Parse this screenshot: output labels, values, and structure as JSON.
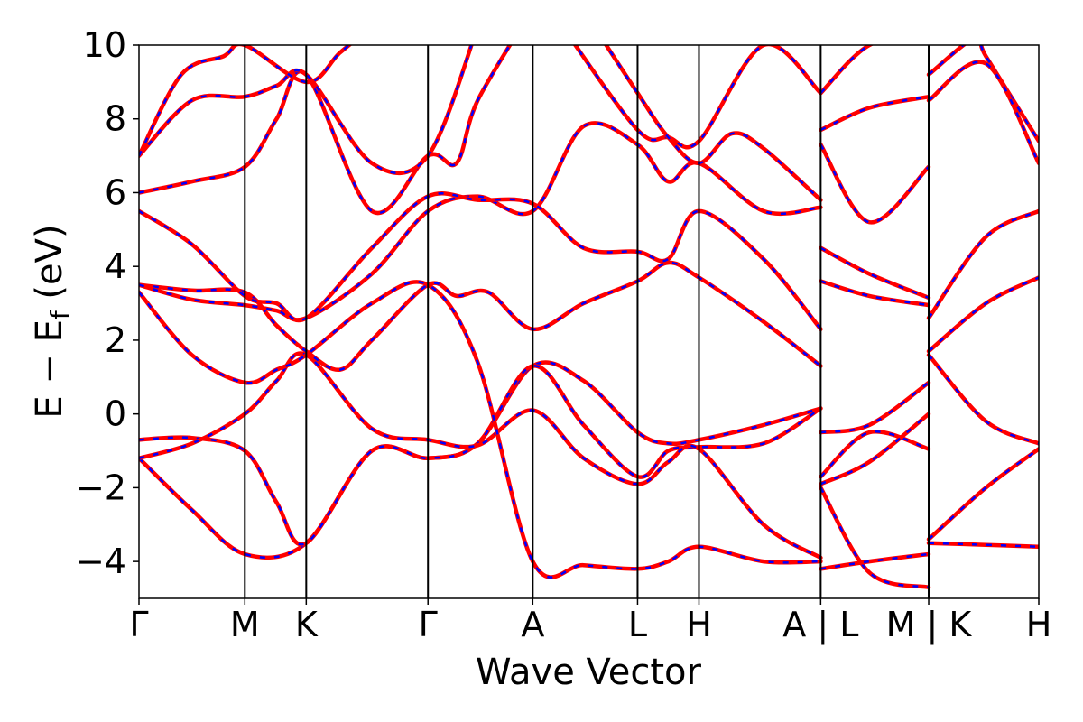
{
  "chart_data": {
    "type": "line",
    "title": "",
    "xlabel": "Wave Vector",
    "ylabel_main": "E − E",
    "ylabel_sub": "f",
    "ylabel_unit": " (eV)",
    "ylim": [
      -5,
      10
    ],
    "yticks": [
      -4,
      -2,
      0,
      2,
      4,
      6,
      8,
      10
    ],
    "ytick_labels": [
      "−4",
      "−2",
      "0",
      "2",
      "4",
      "6",
      "8",
      "10"
    ],
    "xlim": [
      0,
      8.5
    ],
    "kpoints": [
      {
        "label": "Γ",
        "x": 0.0
      },
      {
        "label": "M",
        "x": 1.0
      },
      {
        "label": "K",
        "x": 1.58
      },
      {
        "label": "Γ",
        "x": 2.73
      },
      {
        "label": "A",
        "x": 3.72
      },
      {
        "label": "L",
        "x": 4.71
      },
      {
        "label": "H",
        "x": 5.29
      },
      {
        "label": "A | L",
        "x": 6.44
      },
      {
        "label": "M | K",
        "x": 7.46
      },
      {
        "label": "H",
        "x": 8.5
      }
    ],
    "grid": false,
    "legend": "none",
    "colors": {
      "primary": "#ff0000",
      "secondary": "#0000ff",
      "axis": "#000000"
    },
    "series": [
      {
        "points": [
          [
            0,
            -1.2
          ],
          [
            0.5,
            -2.6
          ],
          [
            1.0,
            -3.8
          ],
          [
            1.58,
            -3.5
          ],
          [
            2.2,
            -1.0
          ],
          [
            2.73,
            -1.2
          ],
          [
            3.2,
            -0.8
          ],
          [
            3.72,
            1.3
          ],
          [
            4.2,
            0.9
          ],
          [
            4.71,
            -0.5
          ],
          [
            5.0,
            -0.8
          ],
          [
            5.29,
            -0.7
          ],
          [
            5.9,
            -0.3
          ],
          [
            6.44,
            0.15
          ]
        ]
      },
      {
        "points": [
          [
            0,
            -0.7
          ],
          [
            0.5,
            -0.65
          ],
          [
            1.0,
            -1.0
          ],
          [
            1.3,
            -2.4
          ],
          [
            1.58,
            -3.5
          ],
          [
            2.2,
            -1.0
          ],
          [
            2.73,
            -1.2
          ],
          [
            3.2,
            -0.8
          ],
          [
            3.72,
            1.3
          ],
          [
            4.2,
            -0.3
          ],
          [
            4.71,
            -1.7
          ],
          [
            5.0,
            -1.0
          ],
          [
            5.29,
            -0.9
          ],
          [
            5.9,
            -0.8
          ],
          [
            6.44,
            0.15
          ]
        ]
      },
      {
        "points": [
          [
            0,
            -1.2
          ],
          [
            0.5,
            -0.8
          ],
          [
            1.0,
            0.0
          ],
          [
            1.3,
            0.9
          ],
          [
            1.58,
            1.6
          ],
          [
            2.2,
            -0.4
          ],
          [
            2.73,
            -0.7
          ],
          [
            3.2,
            -0.85
          ],
          [
            3.72,
            0.1
          ],
          [
            4.2,
            -1.2
          ],
          [
            4.71,
            -1.9
          ],
          [
            5.0,
            -1.3
          ],
          [
            5.29,
            -0.95
          ],
          [
            5.9,
            -3.0
          ],
          [
            6.44,
            -3.9
          ]
        ]
      },
      {
        "points": [
          [
            0,
            3.3
          ],
          [
            0.5,
            1.6
          ],
          [
            1.0,
            0.85
          ],
          [
            1.3,
            1.2
          ],
          [
            1.58,
            1.6
          ],
          [
            2.2,
            3.0
          ],
          [
            2.73,
            3.5
          ],
          [
            3.2,
            1.4
          ],
          [
            3.72,
            -4.0
          ],
          [
            4.2,
            -4.1
          ],
          [
            4.71,
            -4.2
          ],
          [
            5.0,
            -4.0
          ],
          [
            5.29,
            -3.6
          ],
          [
            5.9,
            -4.0
          ],
          [
            6.44,
            -4.0
          ]
        ]
      },
      {
        "points": [
          [
            0,
            3.5
          ],
          [
            0.5,
            3.35
          ],
          [
            1.0,
            3.3
          ],
          [
            1.3,
            2.4
          ],
          [
            1.58,
            1.7
          ],
          [
            1.9,
            1.2
          ],
          [
            2.2,
            2.0
          ],
          [
            2.73,
            3.5
          ],
          [
            3.0,
            3.2
          ],
          [
            3.3,
            3.3
          ],
          [
            3.72,
            2.3
          ],
          [
            4.2,
            3.0
          ],
          [
            4.71,
            3.6
          ],
          [
            5.0,
            4.1
          ],
          [
            5.29,
            3.7
          ],
          [
            5.9,
            2.5
          ],
          [
            6.44,
            1.3
          ]
        ]
      },
      {
        "points": [
          [
            0,
            3.5
          ],
          [
            0.5,
            3.1
          ],
          [
            1.0,
            2.95
          ],
          [
            1.3,
            2.8
          ],
          [
            1.58,
            2.6
          ],
          [
            2.2,
            3.8
          ],
          [
            2.73,
            5.5
          ],
          [
            3.2,
            5.9
          ],
          [
            3.72,
            5.5
          ],
          [
            4.2,
            7.8
          ],
          [
            4.71,
            7.3
          ],
          [
            5.0,
            6.3
          ],
          [
            5.29,
            6.8
          ],
          [
            5.9,
            5.5
          ],
          [
            6.44,
            5.6
          ]
        ]
      },
      {
        "points": [
          [
            0,
            5.5
          ],
          [
            0.5,
            4.6
          ],
          [
            1.0,
            3.2
          ],
          [
            1.3,
            3.0
          ],
          [
            1.58,
            2.6
          ],
          [
            2.2,
            4.5
          ],
          [
            2.73,
            5.9
          ],
          [
            3.2,
            5.8
          ],
          [
            3.72,
            5.7
          ],
          [
            4.2,
            4.5
          ],
          [
            4.71,
            4.4
          ],
          [
            5.0,
            4.2
          ],
          [
            5.29,
            5.5
          ],
          [
            5.9,
            4.2
          ],
          [
            6.44,
            2.3
          ]
        ]
      },
      {
        "points": [
          [
            0,
            6.0
          ],
          [
            0.5,
            6.3
          ],
          [
            1.0,
            6.7
          ],
          [
            1.3,
            8.0
          ],
          [
            1.58,
            9.2
          ],
          [
            2.2,
            5.5
          ],
          [
            2.73,
            7.0
          ],
          [
            3.0,
            6.8
          ],
          [
            3.2,
            8.5
          ],
          [
            3.72,
            11.0
          ]
        ]
      },
      {
        "points": [
          [
            0,
            7.0
          ],
          [
            0.5,
            8.5
          ],
          [
            1.0,
            8.6
          ],
          [
            1.3,
            8.9
          ],
          [
            1.58,
            9.2
          ],
          [
            2.2,
            6.8
          ],
          [
            2.73,
            7.0
          ],
          [
            3.2,
            10.5
          ]
        ]
      },
      {
        "points": [
          [
            0,
            7.0
          ],
          [
            0.4,
            9.2
          ],
          [
            0.8,
            9.7
          ],
          [
            1.0,
            10.0
          ],
          [
            1.58,
            9.0
          ],
          [
            1.9,
            9.8
          ],
          [
            2.2,
            10.5
          ]
        ]
      },
      {
        "points": [
          [
            4.0,
            10.5
          ],
          [
            4.71,
            7.7
          ],
          [
            5.0,
            7.5
          ],
          [
            5.29,
            7.4
          ],
          [
            5.9,
            10.0
          ],
          [
            6.44,
            8.7
          ]
        ]
      },
      {
        "points": [
          [
            4.3,
            10.5
          ],
          [
            4.71,
            8.7
          ],
          [
            5.0,
            7.5
          ],
          [
            5.29,
            6.8
          ],
          [
            5.6,
            7.6
          ],
          [
            5.9,
            7.2
          ],
          [
            6.44,
            5.8
          ]
        ]
      },
      {
        "points": [
          [
            6.44,
            8.7
          ],
          [
            6.9,
            10.0
          ],
          [
            7.46,
            10.3
          ]
        ]
      },
      {
        "points": [
          [
            6.44,
            7.7
          ],
          [
            6.9,
            8.3
          ],
          [
            7.46,
            8.6
          ]
        ]
      },
      {
        "points": [
          [
            6.44,
            7.3
          ],
          [
            6.9,
            5.2
          ],
          [
            7.46,
            6.7
          ]
        ]
      },
      {
        "points": [
          [
            6.44,
            4.5
          ],
          [
            6.9,
            3.8
          ],
          [
            7.46,
            3.15
          ]
        ]
      },
      {
        "points": [
          [
            6.44,
            3.6
          ],
          [
            6.9,
            3.2
          ],
          [
            7.46,
            2.95
          ]
        ]
      },
      {
        "points": [
          [
            6.44,
            -0.5
          ],
          [
            6.9,
            -0.3
          ],
          [
            7.46,
            0.85
          ]
        ]
      },
      {
        "points": [
          [
            6.44,
            -1.7
          ],
          [
            6.9,
            -0.5
          ],
          [
            7.46,
            -0.95
          ]
        ]
      },
      {
        "points": [
          [
            6.44,
            -1.9
          ],
          [
            6.9,
            -1.3
          ],
          [
            7.46,
            0.0
          ]
        ]
      },
      {
        "points": [
          [
            6.44,
            -2.0
          ],
          [
            6.9,
            -4.3
          ],
          [
            7.46,
            -4.7
          ]
        ]
      },
      {
        "points": [
          [
            6.44,
            -4.2
          ],
          [
            6.9,
            -4.0
          ],
          [
            7.46,
            -3.8
          ]
        ]
      },
      {
        "points": [
          [
            7.46,
            9.2
          ],
          [
            7.9,
            10.2
          ],
          [
            8.0,
            9.7
          ],
          [
            8.5,
            7.4
          ]
        ]
      },
      {
        "points": [
          [
            7.46,
            8.5
          ],
          [
            8.0,
            9.5
          ],
          [
            8.5,
            6.8
          ]
        ]
      },
      {
        "points": [
          [
            7.46,
            2.6
          ],
          [
            8.0,
            4.8
          ],
          [
            8.5,
            5.5
          ]
        ]
      },
      {
        "points": [
          [
            7.46,
            1.7
          ],
          [
            8.0,
            3.0
          ],
          [
            8.5,
            3.7
          ]
        ]
      },
      {
        "points": [
          [
            7.46,
            1.6
          ],
          [
            8.0,
            -0.2
          ],
          [
            8.5,
            -0.8
          ]
        ]
      },
      {
        "points": [
          [
            7.46,
            -3.4
          ],
          [
            8.0,
            -2.0
          ],
          [
            8.5,
            -0.95
          ]
        ]
      },
      {
        "points": [
          [
            7.46,
            -3.5
          ],
          [
            8.0,
            -3.55
          ],
          [
            8.5,
            -3.6
          ]
        ]
      }
    ]
  }
}
